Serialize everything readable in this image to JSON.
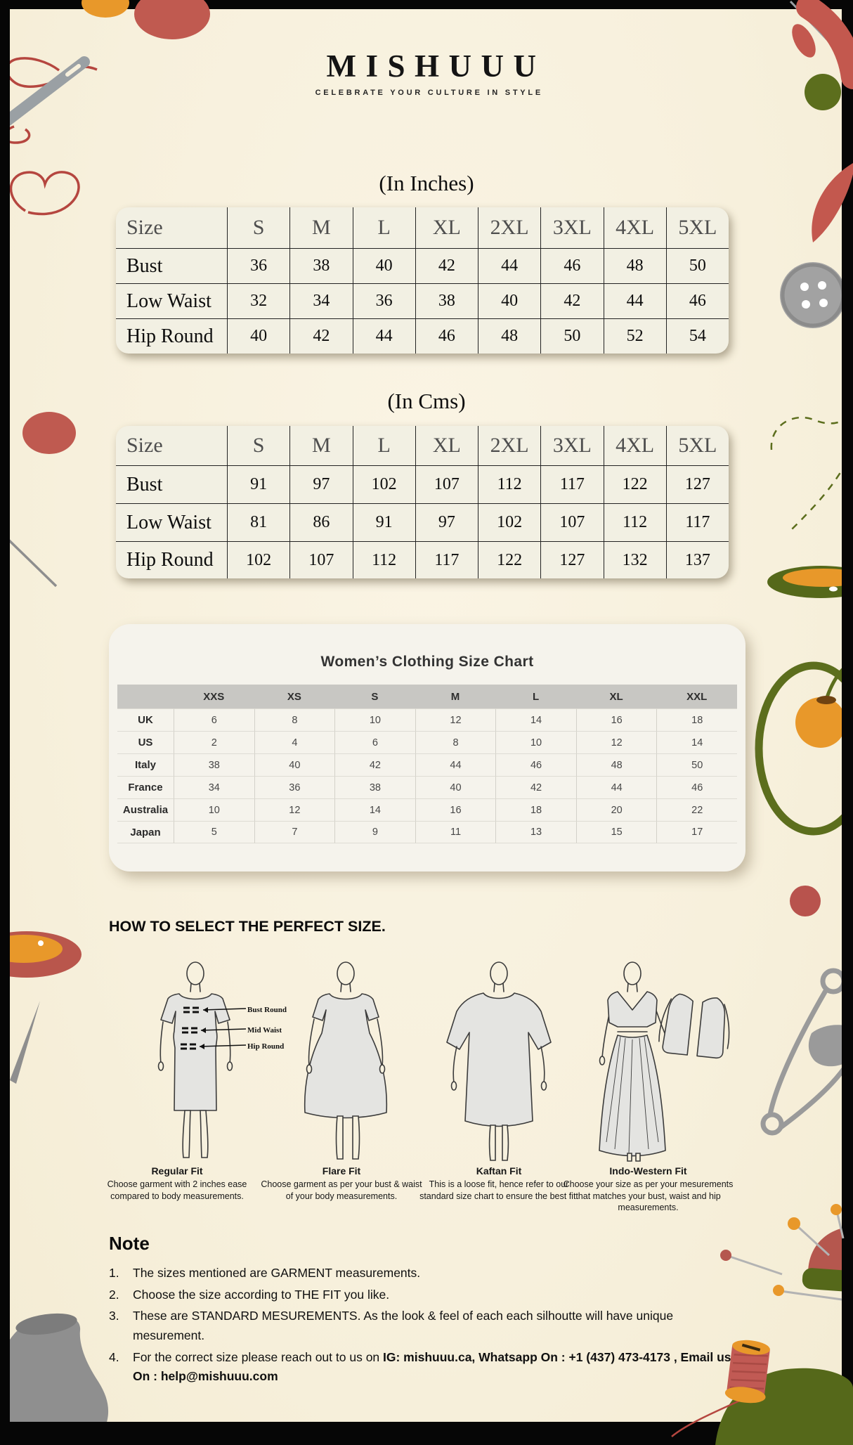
{
  "brand": {
    "name": "MISHUUU",
    "tagline": "CELEBRATE YOUR CULTURE IN STYLE"
  },
  "inches_table": {
    "title": "(In Inches)",
    "header": [
      "Size",
      "S",
      "M",
      "L",
      "XL",
      "2XL",
      "3XL",
      "4XL",
      "5XL"
    ],
    "rows": [
      {
        "label": "Bust",
        "values": [
          "36",
          "38",
          "40",
          "42",
          "44",
          "46",
          "48",
          "50"
        ]
      },
      {
        "label": "Low Waist",
        "values": [
          "32",
          "34",
          "36",
          "38",
          "40",
          "42",
          "44",
          "46"
        ]
      },
      {
        "label": "Hip Round",
        "values": [
          "40",
          "42",
          "44",
          "46",
          "48",
          "50",
          "52",
          "54"
        ]
      }
    ]
  },
  "cms_table": {
    "title": "(In Cms)",
    "header": [
      "Size",
      "S",
      "M",
      "L",
      "XL",
      "2XL",
      "3XL",
      "4XL",
      "5XL"
    ],
    "rows": [
      {
        "label": "Bust",
        "values": [
          "91",
          "97",
          "102",
          "107",
          "112",
          "117",
          "122",
          "127"
        ]
      },
      {
        "label": "Low Waist",
        "values": [
          "81",
          "86",
          "91",
          "97",
          "102",
          "107",
          "112",
          "117"
        ]
      },
      {
        "label": "Hip Round",
        "values": [
          "102",
          "107",
          "112",
          "117",
          "122",
          "127",
          "132",
          "137"
        ]
      }
    ]
  },
  "intl_chart": {
    "title": "Women’s Clothing Size Chart",
    "header": [
      "",
      "XXS",
      "XS",
      "S",
      "M",
      "L",
      "XL",
      "XXL"
    ],
    "rows": [
      {
        "label": "UK",
        "values": [
          "6",
          "8",
          "10",
          "12",
          "14",
          "16",
          "18"
        ]
      },
      {
        "label": "US",
        "values": [
          "2",
          "4",
          "6",
          "8",
          "10",
          "12",
          "14"
        ]
      },
      {
        "label": "Italy",
        "values": [
          "38",
          "40",
          "42",
          "44",
          "46",
          "48",
          "50"
        ]
      },
      {
        "label": "France",
        "values": [
          "34",
          "36",
          "38",
          "40",
          "42",
          "44",
          "46"
        ]
      },
      {
        "label": "Australia",
        "values": [
          "10",
          "12",
          "14",
          "16",
          "18",
          "20",
          "22"
        ]
      },
      {
        "label": "Japan",
        "values": [
          "5",
          "7",
          "9",
          "11",
          "13",
          "15",
          "17"
        ]
      }
    ]
  },
  "fit_section": {
    "heading": "HOW TO SELECT THE PERFECT SIZE.",
    "measure_labels": [
      "Bust Round",
      "Mid Waist",
      "Hip Round"
    ],
    "fits": [
      {
        "name": "Regular Fit",
        "description": "Choose garment with 2 inches ease compared to body measurements."
      },
      {
        "name": "Flare Fit",
        "description": "Choose garment as per your bust & waist of your body measurements."
      },
      {
        "name": "Kaftan Fit",
        "description": "This is a loose fit, hence refer to our standard size chart to ensure the best fit."
      },
      {
        "name": "Indo-Western Fit",
        "description": "Choose your size as per your mesurements that matches your bust, waist and hip measurements."
      }
    ]
  },
  "note": {
    "heading": "Note",
    "items": [
      "The sizes mentioned are GARMENT measurements.",
      "Choose the size according to THE FIT you like.",
      "These are STANDARD MESUREMENTS. As the look & feel of each each silhoutte will have unique mesurement.",
      {
        "text": "For the correct size please reach out to us on ",
        "bold": "IG: mishuuu.ca, Whatsapp On : +1 (437) 473-4173 , Email us On : help@mishuuu.com"
      }
    ]
  },
  "palette": {
    "cream": "#f7f0dc",
    "red": "#bf564c",
    "orange": "#e8982a",
    "olive": "#5c6e1d",
    "gray": "#9a9a9a",
    "frame": "#060606"
  }
}
